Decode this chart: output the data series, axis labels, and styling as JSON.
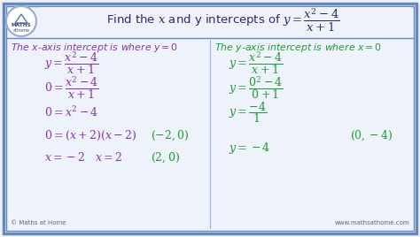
{
  "bg_color": "#eef2fa",
  "border_color": "#6688bb",
  "title_color": "#2a2a6a",
  "purple_color": "#8833aa",
  "green_color": "#229933",
  "title_text": "Find the $x$ and y intercepts of $y = \\dfrac{x^2-4}{x+1}$",
  "left_heading": "The $x$-axis intercept is where $y = 0$",
  "right_heading": "The $y$-axis intercept is where $x = 0$",
  "footer_left": "© Maths at Home",
  "footer_right": "www.mathsathome.com"
}
